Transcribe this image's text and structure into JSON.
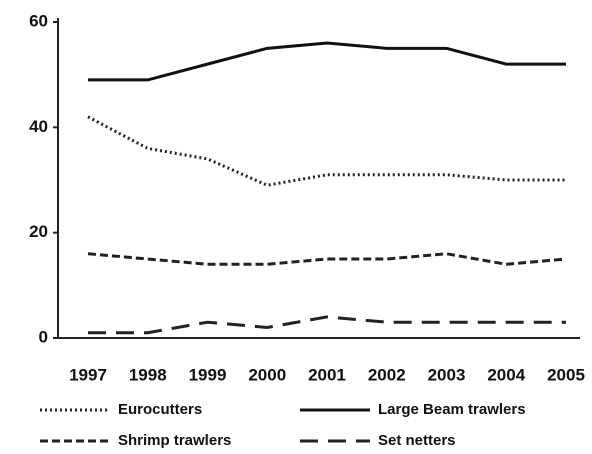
{
  "chart_data": {
    "type": "line",
    "categories": [
      "1997",
      "1998",
      "1999",
      "2000",
      "2001",
      "2002",
      "2003",
      "2004",
      "2005"
    ],
    "series": [
      {
        "name": "Eurocutters",
        "color": "#222222",
        "dash": "dotted",
        "values": [
          42,
          36,
          34,
          29,
          31,
          31,
          31,
          30,
          30
        ]
      },
      {
        "name": "Large Beam trawlers",
        "color": "#111111",
        "dash": "solid",
        "values": [
          49,
          49,
          52,
          55,
          56,
          55,
          55,
          52,
          52
        ]
      },
      {
        "name": "Shrimp trawlers",
        "color": "#222222",
        "dash": "short-dash",
        "values": [
          16,
          15,
          14,
          14,
          15,
          15,
          16,
          14,
          15
        ]
      },
      {
        "name": "Set netters",
        "color": "#222222",
        "dash": "long-dash",
        "values": [
          1,
          1,
          3,
          2,
          4,
          3,
          3,
          3,
          3
        ]
      }
    ],
    "ylim": [
      0,
      60
    ],
    "yticks": [
      0,
      20,
      40,
      60
    ],
    "grid": false
  }
}
